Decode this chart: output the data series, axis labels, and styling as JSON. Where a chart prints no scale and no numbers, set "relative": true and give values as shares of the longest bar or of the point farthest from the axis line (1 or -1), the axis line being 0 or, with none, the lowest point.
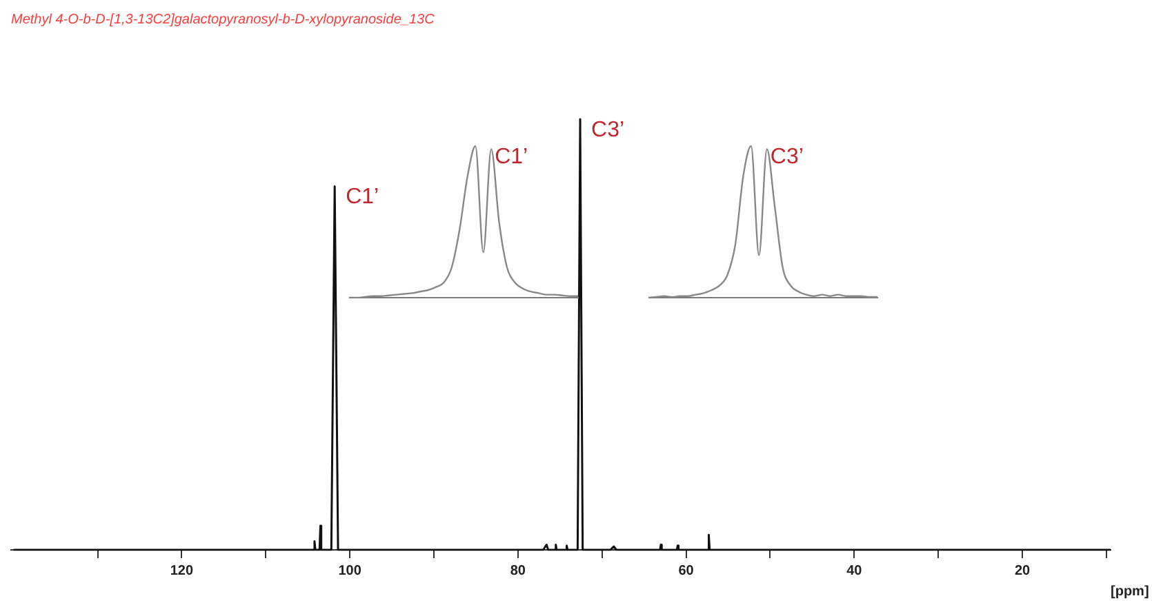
{
  "chart_data": [
    {
      "type": "line",
      "title": "Methyl 4-O-b-D-[1,3-13C2]galactopyranosyl-b-D-xylopyranoside_13C",
      "xlabel": "[ppm]",
      "relative": true,
      "color": "#111111",
      "tick_labels": "x",
      "x": [
        140,
        106,
        104.3,
        104.2,
        104.1,
        103.6,
        103.5,
        103.4,
        102.2,
        101.8,
        101.4,
        77,
        76.6,
        76.4,
        75.6,
        75.5,
        75.4,
        74.3,
        74.2,
        74.1,
        72.9,
        72.6,
        72.3,
        69,
        68.6,
        68.3,
        63.1,
        63,
        62.9,
        61.1,
        61,
        60.9,
        57.4,
        57.3,
        57.2,
        9.5
      ],
      "values": [
        0,
        0,
        0,
        0.02,
        0,
        0,
        0.056,
        0,
        0,
        0.844,
        0,
        0,
        0.012,
        0,
        0,
        0.012,
        0,
        0,
        0.01,
        0,
        0,
        1,
        0,
        0,
        0.008,
        0,
        0,
        0.012,
        0,
        0,
        0.01,
        0,
        0,
        0.035,
        0,
        0
      ],
      "xlim": [
        140.3,
        9.5
      ],
      "xticks": [
        {
          "value": 130,
          "label": null
        },
        120,
        {
          "value": 110,
          "label": null
        },
        100,
        {
          "value": 90,
          "label": null
        },
        80,
        {
          "value": 70,
          "label": null
        },
        60,
        {
          "value": 50,
          "label": null
        },
        40,
        {
          "value": 30,
          "label": null
        },
        20,
        {
          "value": 10,
          "label": null
        }
      ],
      "annotations": [
        {
          "text": "C1’",
          "x": 101.8,
          "y": 0.844
        },
        {
          "text": "C3’",
          "x": 72.6,
          "y": 1
        }
      ]
    },
    {
      "type": "line",
      "relative": true,
      "color": "#888888",
      "tick_labels": false,
      "categories": [
        null,
        null,
        null,
        null,
        null,
        null,
        null,
        null,
        null,
        null,
        null,
        null,
        null,
        null,
        null,
        null,
        null,
        null,
        null,
        null,
        null,
        null,
        null,
        null,
        null,
        null,
        null,
        null,
        null,
        null
      ],
      "values": [
        0,
        0,
        0.005,
        0.01,
        0.01,
        0.015,
        0.02,
        0.025,
        0.03,
        0.04,
        0.05,
        0.07,
        0.1,
        0.2,
        0.45,
        0.8,
        1,
        0.3,
        0.98,
        0.5,
        0.2,
        0.1,
        0.06,
        0.04,
        0.03,
        0.02,
        0.02,
        0.015,
        0.01,
        0.01
      ],
      "annotations": [
        "C1’"
      ]
    },
    {
      "type": "line",
      "relative": true,
      "color": "#888888",
      "tick_labels": false,
      "categories": [
        null,
        null,
        null,
        null,
        null,
        null,
        null,
        null,
        null,
        null,
        null,
        null,
        null,
        null,
        null,
        null,
        null,
        null,
        null,
        null,
        null,
        null,
        null,
        null,
        null,
        null,
        null,
        null,
        null,
        null
      ],
      "values": [
        0,
        0.005,
        0.01,
        0.005,
        0.01,
        0.01,
        0.02,
        0.03,
        0.05,
        0.08,
        0.15,
        0.35,
        0.8,
        1,
        0.28,
        0.98,
        0.6,
        0.2,
        0.08,
        0.04,
        0.02,
        0.01,
        0.02,
        0.01,
        0.02,
        0.01,
        0.01,
        0.01,
        0.005,
        0.005
      ],
      "annotations": [
        "C3’"
      ]
    }
  ]
}
